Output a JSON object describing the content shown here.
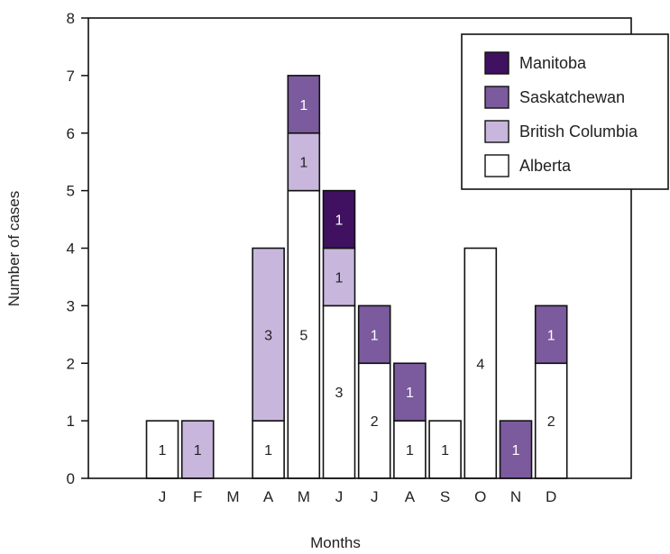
{
  "chart_data": {
    "type": "bar",
    "stacked": true,
    "categories": [
      "J",
      "F",
      "M",
      "A",
      "M",
      "J",
      "J",
      "A",
      "S",
      "O",
      "N",
      "D"
    ],
    "series": [
      {
        "name": "Alberta",
        "color": "#ffffff",
        "values": [
          1,
          0,
          0,
          1,
          5,
          3,
          2,
          1,
          1,
          4,
          0,
          2
        ]
      },
      {
        "name": "British Columbia",
        "color": "#c8b6dc",
        "values": [
          0,
          1,
          0,
          3,
          1,
          1,
          0,
          0,
          0,
          0,
          0,
          0
        ]
      },
      {
        "name": "Saskatchewan",
        "color": "#7b5a9e",
        "values": [
          0,
          0,
          0,
          0,
          1,
          0,
          1,
          1,
          0,
          0,
          1,
          1
        ]
      },
      {
        "name": "Manitoba",
        "color": "#3f1160",
        "values": [
          0,
          0,
          0,
          0,
          0,
          1,
          0,
          0,
          0,
          0,
          0,
          0
        ]
      }
    ],
    "xlabel": "Months",
    "ylabel": "Number of cases",
    "ylim": [
      0,
      8
    ],
    "yticks": [
      "0",
      "1",
      "2",
      "3",
      "4",
      "5",
      "6",
      "7",
      "8"
    ],
    "grid": false,
    "legend_position": "top-right",
    "legend_order": [
      "Manitoba",
      "Saskatchewan",
      "British Columbia",
      "Alberta"
    ]
  }
}
